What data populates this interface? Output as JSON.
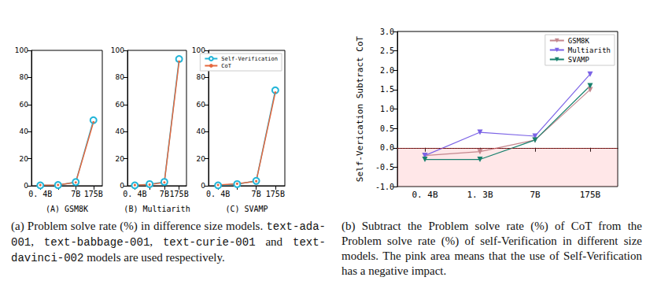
{
  "chart_data": [
    {
      "type": "line",
      "x_label": "(A) GSM8K",
      "categories": [
        "0. 4B",
        null,
        "7B",
        "175B"
      ],
      "series": [
        {
          "name": "Self-Verification",
          "color": "#22b5d8",
          "marker": "circle_open",
          "values": [
            0.3,
            0.5,
            2.7,
            48.4
          ]
        },
        {
          "name": "CoT",
          "color": "#e5683f",
          "marker": "point",
          "values": [
            0.5,
            0.6,
            2.5,
            46.9
          ]
        }
      ],
      "ylim": [
        0,
        100
      ],
      "yticks": [
        0,
        20,
        40,
        60,
        80,
        100
      ]
    },
    {
      "type": "line",
      "x_label": "(B) Multiarith",
      "categories": [
        "0. 4B",
        null,
        "7B",
        "175B"
      ],
      "series": [
        {
          "name": "Self-Verification",
          "color": "#22b5d8",
          "marker": "circle_open",
          "values": [
            0.3,
            1.2,
            2.8,
            93.6
          ]
        },
        {
          "name": "CoT",
          "color": "#e5683f",
          "marker": "point",
          "values": [
            0.5,
            0.8,
            2.5,
            91.7
          ]
        }
      ],
      "ylim": [
        0,
        100
      ],
      "yticks": [
        0,
        20,
        40,
        60,
        80,
        100
      ]
    },
    {
      "type": "line",
      "x_label": "(C) SVAMP",
      "categories": [
        "0. 4B",
        null,
        "7B",
        "175B"
      ],
      "series": [
        {
          "name": "Self-Verification",
          "color": "#22b5d8",
          "marker": "circle_open",
          "values": [
            0.3,
            1.2,
            3.6,
            70.5
          ]
        },
        {
          "name": "CoT",
          "color": "#e5683f",
          "marker": "point",
          "values": [
            0.6,
            1.5,
            3.4,
            68.9
          ]
        }
      ],
      "ylim": [
        0,
        100
      ],
      "yticks": [
        0,
        20,
        40,
        60,
        80,
        100
      ],
      "legend": "upper right"
    },
    {
      "type": "line",
      "y_label": "Self-Verication Subtract CoT",
      "categories": [
        "0. 4B",
        "1. 3B",
        "7B",
        "175B"
      ],
      "series": [
        {
          "name": "GSM8K",
          "color": "#c4868d",
          "marker": "triangle_down",
          "values": [
            -0.2,
            -0.1,
            0.2,
            1.5
          ]
        },
        {
          "name": "Multiarith",
          "color": "#7b63e6",
          "marker": "triangle_down",
          "values": [
            -0.2,
            0.4,
            0.3,
            1.9
          ]
        },
        {
          "name": "SVAMP",
          "color": "#17806d",
          "marker": "triangle_down",
          "values": [
            -0.3,
            -0.3,
            0.2,
            1.6
          ]
        }
      ],
      "ylim": [
        -1,
        3
      ],
      "yticks": [
        {
          "value": -1,
          "label": "-1.0"
        },
        {
          "value": -0.5,
          "label": "-0.5"
        },
        {
          "value": 0,
          "label": "0.0"
        },
        {
          "value": 0.5,
          "label": "0.5"
        },
        {
          "value": 1,
          "label": "1.0"
        },
        {
          "value": 1.5,
          "label": "1.5"
        },
        {
          "value": 2,
          "label": "2.0"
        },
        {
          "value": 2.5,
          "label": "2.5"
        },
        {
          "value": 3,
          "label": "3.0"
        }
      ],
      "reference_line": 0,
      "legend": "upper right"
    }
  ],
  "captions": [
    [
      "(a) Problem solve rate (%) in difference size models. ",
      {
        "code": "text-ada-001"
      },
      ", ",
      {
        "code": "text-babbage-001"
      },
      ", ",
      {
        "code": "text-curie-001"
      },
      " and ",
      {
        "code": "text-davinci-002"
      },
      " models are used respectively."
    ],
    [
      "(b) Subtract the Problem solve rate (%) of CoT from the Problem solve rate (%) of self-Verification in different size models. The pink area means that the use of Self-Verification has a negative impact."
    ]
  ]
}
